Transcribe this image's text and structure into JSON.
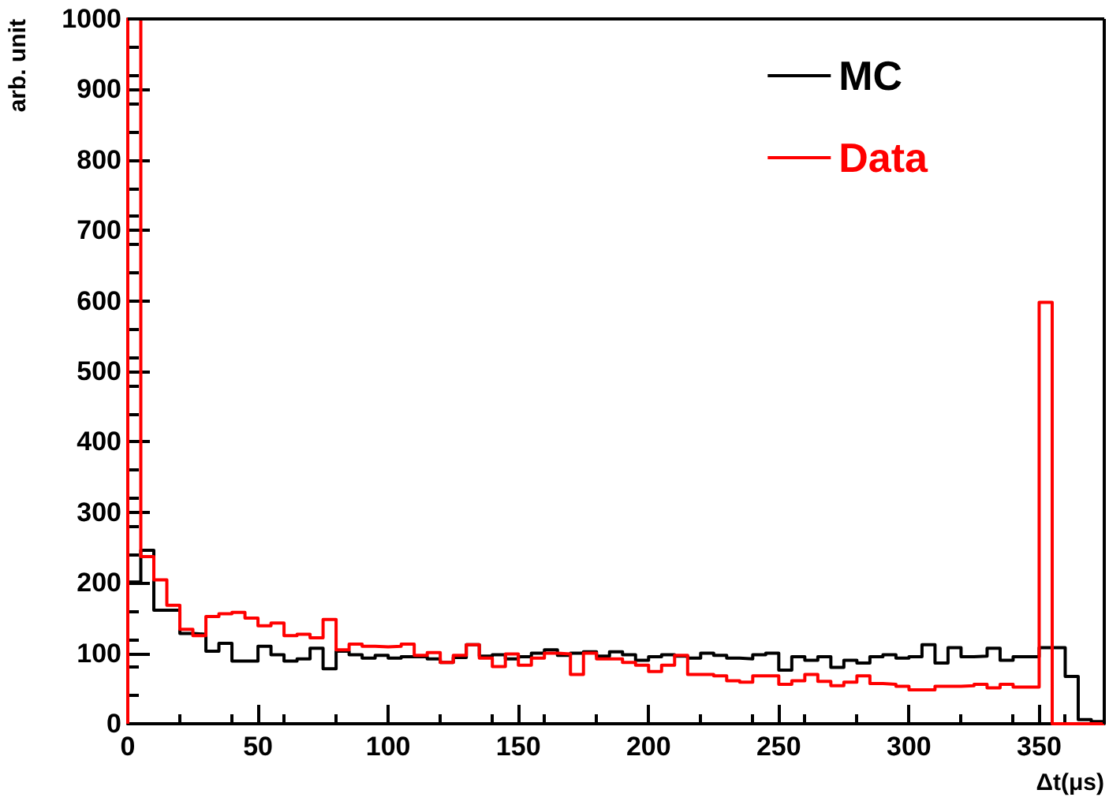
{
  "chart_data": {
    "type": "histogram",
    "xlabel": "Δt(μs)",
    "ylabel": "arb. unit",
    "bins": [
      0,
      5,
      10,
      15,
      20,
      25,
      30,
      35,
      40,
      45,
      50,
      55,
      60,
      65,
      70,
      75,
      80,
      85,
      90,
      95,
      100,
      105,
      110,
      115,
      120,
      125,
      130,
      135,
      140,
      145,
      150,
      155,
      160,
      165,
      170,
      175,
      180,
      185,
      190,
      195,
      200,
      205,
      210,
      215,
      220,
      225,
      230,
      235,
      240,
      245,
      250,
      255,
      260,
      265,
      270,
      275,
      280,
      285,
      290,
      295,
      300,
      305,
      310,
      315,
      320,
      325,
      330,
      335,
      340,
      345,
      350,
      355,
      360,
      365,
      370,
      375
    ],
    "series": [
      {
        "name": "MC",
        "color": "#000000",
        "values": [
          201,
          246,
          161,
          161,
          128,
          127,
          103,
          114,
          89,
          89,
          110,
          98,
          89,
          92,
          107,
          78,
          103,
          98,
          93,
          97,
          93,
          95,
          95,
          92,
          87,
          94,
          112,
          96,
          98,
          92,
          95,
          100,
          105,
          97,
          100,
          102,
          96,
          102,
          98,
          90,
          95,
          98,
          96,
          93,
          100,
          97,
          93,
          92,
          98,
          100,
          76,
          95,
          90,
          95,
          80,
          90,
          86,
          95,
          98,
          93,
          95,
          112,
          86,
          108,
          95,
          96,
          107,
          90,
          95,
          95,
          108,
          108,
          67,
          6,
          3
        ]
      },
      {
        "name": "Data",
        "color": "#ff0000",
        "values": [
          1000,
          237,
          204,
          168,
          134,
          125,
          152,
          156,
          158,
          150,
          139,
          143,
          125,
          127,
          122,
          148,
          105,
          113,
          110,
          109,
          110,
          113,
          97,
          101,
          87,
          97,
          112,
          93,
          81,
          99,
          83,
          93,
          100,
          99,
          70,
          100,
          92,
          92,
          87,
          83,
          74,
          83,
          97,
          70,
          70,
          68,
          61,
          59,
          68,
          68,
          56,
          61,
          70,
          60,
          54,
          59,
          68,
          57,
          56,
          53,
          48,
          48,
          53,
          53,
          54,
          56,
          51,
          56,
          52,
          52,
          598,
          0,
          0,
          0,
          0
        ]
      }
    ],
    "xlim": [
      0,
      375
    ],
    "ylim": [
      0,
      1000
    ],
    "xticks": [
      0,
      50,
      100,
      150,
      200,
      250,
      300,
      350
    ],
    "yticks": [
      0,
      100,
      200,
      300,
      400,
      500,
      600,
      700,
      800,
      900,
      1000
    ],
    "grid": false,
    "legend": "top right"
  }
}
